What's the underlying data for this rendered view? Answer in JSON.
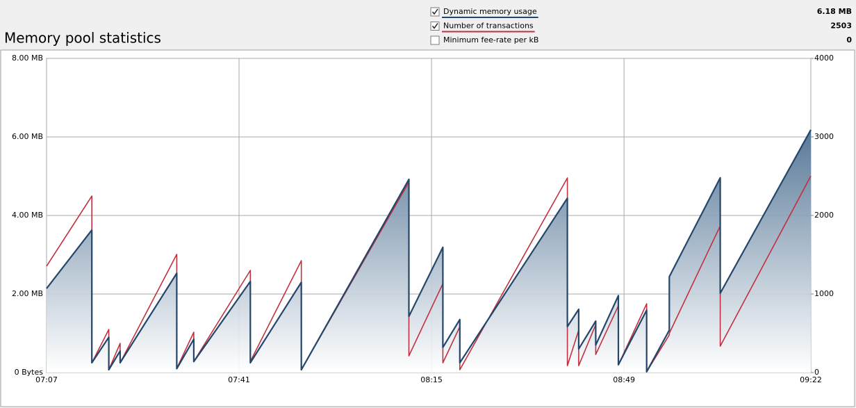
{
  "chart_data": {
    "type": "line",
    "title": "Memory pool statistics",
    "x": [
      427,
      435,
      435,
      438,
      438,
      440,
      440,
      450,
      450,
      453,
      453,
      463,
      463,
      472,
      472,
      491,
      491,
      497,
      497,
      500,
      500,
      519,
      519,
      521,
      521,
      524,
      524,
      528,
      528,
      533,
      533,
      537,
      537,
      546,
      546,
      562
    ],
    "xlim": [
      427,
      562
    ],
    "xticks": [
      {
        "value": 427,
        "label": "07:07"
      },
      {
        "value": 461,
        "label": "07:41"
      },
      {
        "value": 495,
        "label": "08:15"
      },
      {
        "value": 529,
        "label": "08:49"
      },
      {
        "value": 562,
        "label": "09:22"
      }
    ],
    "ylim": [
      0,
      8
    ],
    "yticks": [
      {
        "value": 0,
        "label": "0 Bytes"
      },
      {
        "value": 2,
        "label": "2.00 MB"
      },
      {
        "value": 4,
        "label": "4.00 MB"
      },
      {
        "value": 6,
        "label": "6.00 MB"
      },
      {
        "value": 8,
        "label": "8.00 MB"
      }
    ],
    "y2lim": [
      0,
      4000
    ],
    "y2ticks": [
      0,
      1000,
      2000,
      3000,
      4000
    ],
    "grid": true,
    "series": [
      {
        "name": "Dynamic memory usage",
        "color": "#23466b",
        "checked": true,
        "readout": "6.18 MB",
        "values": [
          2.14,
          3.63,
          0.25,
          0.9,
          0.07,
          0.55,
          0.25,
          2.53,
          0.1,
          0.85,
          0.28,
          2.32,
          0.25,
          2.3,
          0.07,
          4.92,
          1.43,
          3.19,
          0.64,
          1.35,
          0.25,
          4.44,
          1.17,
          1.61,
          0.6,
          1.31,
          0.7,
          1.96,
          0.2,
          1.59,
          0.02,
          1.08,
          2.44,
          4.96,
          2.02,
          6.18
        ]
      },
      {
        "name": "Number of transactions",
        "color": "#c0313f",
        "checked": true,
        "readout": 2503,
        "axis": "y2",
        "values": [
          1354,
          2248,
          124,
          549,
          35,
          372,
          124,
          1505,
          53,
          513,
          142,
          1301,
          142,
          1425,
          35,
          2425,
          212,
          1133,
          124,
          584,
          35,
          2478,
          88,
          540,
          88,
          610,
          230,
          850,
          97,
          876,
          10,
          480,
          500,
          1867,
          336,
          2503
        ]
      }
    ],
    "extra_legend": {
      "name": "Minimum fee-rate per kB",
      "checked": false,
      "readout": 0
    }
  }
}
